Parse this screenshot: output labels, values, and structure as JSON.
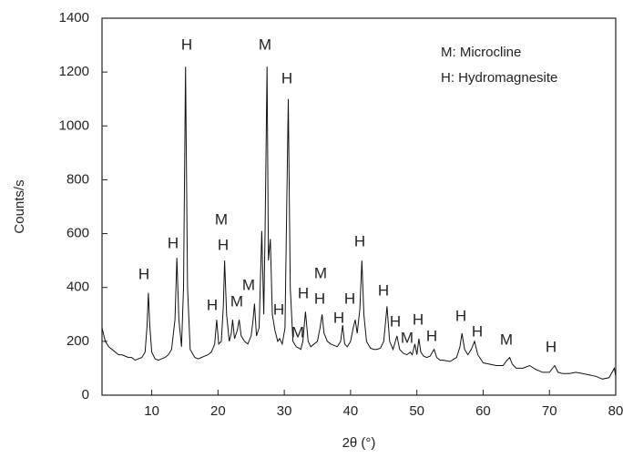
{
  "chart_data": {
    "type": "line",
    "x_label": "2θ (°)",
    "y_label": "Counts/s",
    "legend_text": [
      "M: Microcline",
      "H: Hydromagnesite"
    ],
    "peak_labels": [
      "H",
      "H",
      "H",
      "H",
      "M",
      "H",
      "M",
      "M",
      "M",
      "H",
      "H",
      "H",
      "M",
      "M",
      "H",
      "H",
      "H",
      "H",
      "H",
      "H",
      "M",
      "H",
      "H",
      "H",
      "H",
      "M",
      "H"
    ],
    "color": "#111111",
    "x": [
      2.5,
      3,
      3.5,
      4,
      4.5,
      5,
      5.5,
      6,
      6.5,
      7,
      7.5,
      8,
      8.5,
      9,
      9.3,
      9.5,
      9.7,
      10,
      10.5,
      11,
      11.5,
      12,
      12.5,
      13,
      13.5,
      13.8,
      14.1,
      14.5,
      14.8,
      15.1,
      15.4,
      15.8,
      16.5,
      17,
      17.5,
      18,
      18.5,
      19,
      19.5,
      19.8,
      20.1,
      20.5,
      20.8,
      21,
      21.3,
      21.7,
      22,
      22.2,
      22.5,
      22.9,
      23.2,
      23.5,
      24,
      24.5,
      25,
      25.3,
      25.5,
      25.8,
      26.2,
      26.6,
      26.9,
      27.1,
      27.4,
      27.6,
      27.9,
      28.2,
      28.6,
      29,
      29.3,
      29.7,
      30.1,
      30.6,
      30.9,
      31.3,
      31.8,
      32.2,
      32.5,
      32.8,
      33.2,
      33.6,
      34,
      34.5,
      35,
      35.4,
      35.7,
      36,
      36.5,
      37,
      37.5,
      38,
      38.5,
      38.8,
      39.1,
      39.5,
      40,
      40.4,
      40.7,
      41,
      41.4,
      41.7,
      42,
      42.4,
      43,
      43.5,
      44,
      44.5,
      45,
      45.5,
      45.9,
      46.4,
      47,
      47.4,
      48,
      48.5,
      49,
      49.3,
      49.7,
      50,
      50.3,
      50.6,
      51,
      51.5,
      52,
      52.6,
      53,
      53.5,
      54,
      55,
      56,
      56.5,
      56.8,
      57.2,
      57.7,
      58.2,
      58.7,
      59.2,
      60,
      61,
      62,
      63,
      63.6,
      64,
      64.4,
      65,
      66,
      67,
      68,
      69,
      70,
      70.8,
      71.3,
      72,
      73,
      74,
      75,
      76,
      77,
      78,
      79,
      79.8,
      80
    ],
    "values": [
      250,
      200,
      180,
      170,
      160,
      150,
      150,
      145,
      140,
      140,
      130,
      135,
      140,
      160,
      260,
      380,
      260,
      160,
      135,
      130,
      135,
      140,
      150,
      170,
      280,
      510,
      280,
      180,
      400,
      1220,
      400,
      170,
      140,
      135,
      140,
      145,
      150,
      160,
      190,
      280,
      190,
      200,
      330,
      500,
      300,
      200,
      230,
      280,
      210,
      240,
      280,
      220,
      200,
      190,
      220,
      280,
      340,
      220,
      250,
      610,
      300,
      600,
      1220,
      500,
      580,
      300,
      240,
      200,
      210,
      190,
      250,
      1100,
      400,
      200,
      180,
      175,
      170,
      200,
      310,
      200,
      180,
      190,
      200,
      250,
      300,
      230,
      200,
      190,
      185,
      180,
      200,
      260,
      190,
      180,
      200,
      250,
      280,
      230,
      320,
      500,
      300,
      200,
      175,
      170,
      170,
      175,
      200,
      330,
      200,
      170,
      220,
      170,
      155,
      150,
      160,
      150,
      190,
      150,
      210,
      160,
      145,
      140,
      145,
      170,
      140,
      130,
      130,
      125,
      140,
      180,
      230,
      170,
      150,
      170,
      200,
      150,
      120,
      115,
      110,
      110,
      130,
      140,
      115,
      100,
      100,
      110,
      95,
      85,
      85,
      110,
      85,
      80,
      80,
      85,
      80,
      75,
      70,
      60,
      65,
      100,
      70
    ],
    "xlim": [
      2.5,
      80
    ],
    "ylim": [
      0,
      1400
    ],
    "xticks": [
      10,
      20,
      30,
      40,
      50,
      60,
      70,
      80
    ],
    "yticks": [
      0,
      200,
      400,
      600,
      800,
      1000,
      1200,
      1400
    ]
  }
}
